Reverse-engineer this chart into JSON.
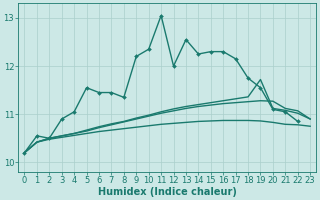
{
  "xlabel": "Humidex (Indice chaleur)",
  "background_color": "#cce8e6",
  "grid_color": "#aacfcc",
  "line_color": "#1a7a6e",
  "xlim": [
    -0.5,
    23.5
  ],
  "ylim": [
    9.8,
    13.3
  ],
  "x_ticks": [
    0,
    1,
    2,
    3,
    4,
    5,
    6,
    7,
    8,
    9,
    10,
    11,
    12,
    13,
    14,
    15,
    16,
    17,
    18,
    19,
    20,
    21,
    22,
    23
  ],
  "y_ticks": [
    10,
    11,
    12,
    13
  ],
  "series_jagged": {
    "x": [
      0,
      1,
      2,
      3,
      4,
      5,
      6,
      7,
      8,
      9,
      10,
      11,
      12,
      13,
      14,
      15,
      16,
      17,
      18,
      19,
      20,
      21,
      22
    ],
    "y": [
      10.2,
      10.55,
      10.5,
      10.9,
      11.05,
      11.55,
      11.45,
      11.45,
      11.35,
      12.2,
      12.35,
      13.05,
      12.0,
      12.55,
      12.25,
      12.3,
      12.3,
      12.15,
      11.75,
      11.55,
      11.1,
      11.05,
      10.85
    ]
  },
  "series_smooth1": {
    "x": [
      0,
      1,
      2,
      3,
      4,
      5,
      6,
      7,
      8,
      9,
      10,
      11,
      12,
      13,
      14,
      15,
      16,
      17,
      18,
      19,
      20,
      21,
      22,
      23
    ],
    "y": [
      10.2,
      10.42,
      10.48,
      10.52,
      10.56,
      10.6,
      10.64,
      10.67,
      10.7,
      10.73,
      10.76,
      10.79,
      10.81,
      10.83,
      10.85,
      10.86,
      10.87,
      10.87,
      10.87,
      10.86,
      10.83,
      10.79,
      10.78,
      10.75
    ]
  },
  "series_smooth2": {
    "x": [
      0,
      1,
      2,
      3,
      4,
      5,
      6,
      7,
      8,
      9,
      10,
      11,
      12,
      13,
      14,
      15,
      16,
      17,
      18,
      19,
      20,
      21,
      22,
      23
    ],
    "y": [
      10.2,
      10.42,
      10.5,
      10.55,
      10.6,
      10.65,
      10.72,
      10.78,
      10.84,
      10.9,
      10.96,
      11.02,
      11.07,
      11.12,
      11.16,
      11.19,
      11.22,
      11.24,
      11.26,
      11.28,
      11.27,
      11.12,
      11.07,
      10.9
    ]
  },
  "series_smooth3": {
    "x": [
      0,
      1,
      2,
      3,
      4,
      5,
      6,
      7,
      8,
      9,
      10,
      11,
      12,
      13,
      14,
      15,
      16,
      17,
      18,
      19,
      20,
      21,
      22,
      23
    ],
    "y": [
      10.2,
      10.42,
      10.5,
      10.55,
      10.6,
      10.67,
      10.74,
      10.8,
      10.85,
      10.92,
      10.98,
      11.05,
      11.11,
      11.16,
      11.2,
      11.24,
      11.28,
      11.32,
      11.36,
      11.72,
      11.12,
      11.08,
      11.02,
      10.9
    ]
  }
}
